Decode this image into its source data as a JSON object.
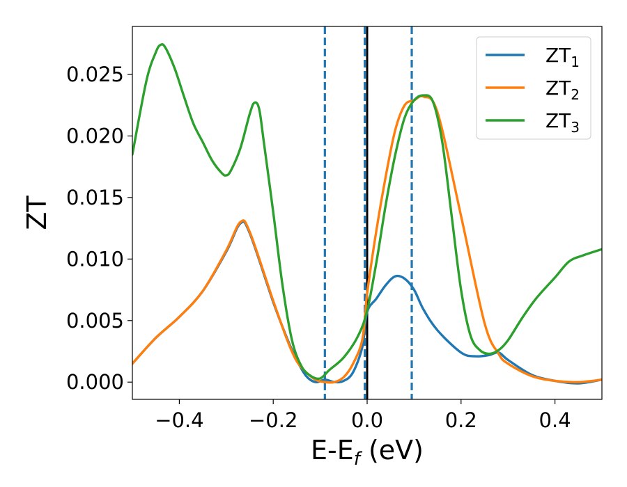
{
  "chart_data": {
    "type": "line",
    "xlabel": "E-E",
    "xlabel_sub": "f",
    "xlabel_unit": " (eV)",
    "ylabel": "ZT",
    "xlim": [
      -0.5,
      0.5
    ],
    "ylim": [
      -0.0014,
      0.0289
    ],
    "xticks": [
      -0.4,
      -0.2,
      0.0,
      0.2,
      0.4
    ],
    "xtick_labels": [
      "−0.4",
      "−0.2",
      "0.0",
      "0.2",
      "0.4"
    ],
    "yticks": [
      0.0,
      0.005,
      0.01,
      0.015,
      0.02,
      0.025
    ],
    "ytick_labels": [
      "0.000",
      "0.005",
      "0.010",
      "0.015",
      "0.020",
      "0.025"
    ],
    "legend_position": "top-right",
    "grid": false,
    "vlines": [
      {
        "x": -0.09,
        "style": "dashed",
        "color": "#1f77b4"
      },
      {
        "x": -0.005,
        "style": "dashed",
        "color": "#1f77b4"
      },
      {
        "x": 0.0,
        "style": "solid",
        "color": "#000000"
      },
      {
        "x": 0.095,
        "style": "dashed",
        "color": "#1f77b4"
      }
    ],
    "series": [
      {
        "name": "ZT",
        "name_sub": "1",
        "color": "#1f77b4",
        "x": [
          -0.5,
          -0.45,
          -0.4,
          -0.35,
          -0.3,
          -0.27,
          -0.25,
          -0.2,
          -0.17,
          -0.15,
          -0.13,
          -0.11,
          -0.09,
          -0.07,
          -0.05,
          -0.03,
          -0.01,
          0.0,
          0.02,
          0.04,
          0.06,
          0.08,
          0.1,
          0.12,
          0.15,
          0.2,
          0.23,
          0.26,
          0.28,
          0.3,
          0.35,
          0.4,
          0.45,
          0.5
        ],
        "y": [
          0.0015,
          0.0036,
          0.0053,
          0.0074,
          0.0106,
          0.0129,
          0.0121,
          0.0065,
          0.0035,
          0.0018,
          0.0005,
          0.0,
          0.0002,
          0.0,
          0.0001,
          0.0008,
          0.0029,
          0.0057,
          0.0068,
          0.0079,
          0.0086,
          0.0084,
          0.0075,
          0.0059,
          0.0042,
          0.0024,
          0.0021,
          0.0022,
          0.0024,
          0.0018,
          0.0006,
          0.0001,
          -0.0001,
          0.0002
        ]
      },
      {
        "name": "ZT",
        "name_sub": "2",
        "color": "#ff7f0e",
        "x": [
          -0.5,
          -0.45,
          -0.4,
          -0.35,
          -0.3,
          -0.27,
          -0.25,
          -0.2,
          -0.17,
          -0.15,
          -0.13,
          -0.11,
          -0.09,
          -0.07,
          -0.05,
          -0.03,
          -0.01,
          0.0,
          0.02,
          0.04,
          0.06,
          0.08,
          0.1,
          0.12,
          0.15,
          0.2,
          0.25,
          0.28,
          0.3,
          0.35,
          0.4,
          0.45,
          0.5
        ],
        "y": [
          0.0015,
          0.0036,
          0.0053,
          0.0074,
          0.0107,
          0.013,
          0.0122,
          0.0066,
          0.0034,
          0.0017,
          0.0008,
          0.0002,
          0.0,
          0.0,
          0.0004,
          0.0015,
          0.0035,
          0.0072,
          0.0124,
          0.0168,
          0.0205,
          0.0225,
          0.0229,
          0.0232,
          0.0219,
          0.0135,
          0.0048,
          0.0023,
          0.0015,
          0.0005,
          0.0001,
          0.0,
          0.0002
        ]
      },
      {
        "name": "ZT",
        "name_sub": "3",
        "color": "#2ca02c",
        "x": [
          -0.5,
          -0.47,
          -0.45,
          -0.44,
          -0.43,
          -0.41,
          -0.39,
          -0.37,
          -0.35,
          -0.33,
          -0.31,
          -0.3,
          -0.29,
          -0.27,
          -0.25,
          -0.24,
          -0.23,
          -0.22,
          -0.2,
          -0.18,
          -0.16,
          -0.14,
          -0.12,
          -0.1,
          -0.08,
          -0.05,
          -0.02,
          0.0,
          0.02,
          0.04,
          0.06,
          0.08,
          0.1,
          0.12,
          0.14,
          0.16,
          0.18,
          0.2,
          0.22,
          0.24,
          0.26,
          0.28,
          0.3,
          0.33,
          0.36,
          0.4,
          0.43,
          0.46,
          0.5
        ],
        "y": [
          0.0185,
          0.0245,
          0.0268,
          0.0274,
          0.0272,
          0.0255,
          0.0232,
          0.021,
          0.0195,
          0.018,
          0.017,
          0.0168,
          0.0172,
          0.019,
          0.0218,
          0.0227,
          0.0222,
          0.0195,
          0.0138,
          0.0078,
          0.0034,
          0.0013,
          0.0005,
          0.0003,
          0.001,
          0.002,
          0.0037,
          0.0058,
          0.0098,
          0.0145,
          0.0185,
          0.0215,
          0.0229,
          0.0233,
          0.0228,
          0.0195,
          0.0135,
          0.0075,
          0.0038,
          0.0026,
          0.0023,
          0.0026,
          0.0034,
          0.0052,
          0.0068,
          0.0085,
          0.0098,
          0.0103,
          0.0108
        ]
      }
    ]
  }
}
